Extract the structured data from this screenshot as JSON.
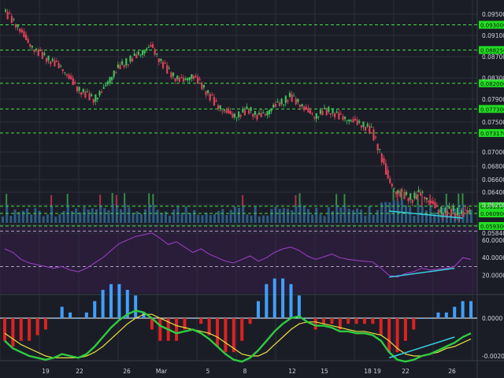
{
  "colors": {
    "background": "#1b1d26",
    "grid": "#2b2f3b",
    "up": "#3fbf5a",
    "down": "#e0405a",
    "level_line": "#44e044",
    "level_tag": "#22dd22",
    "trendline": "#36d0e0",
    "rsi_line": "#a040c8",
    "rsi_band": "#2a1d3a",
    "macd_fast": "#2ecc40",
    "macd_slow": "#e8e040",
    "hist_pos": "#3fa0ff",
    "hist_neg": "#dd2222",
    "volume": "#3a8fd0"
  },
  "chart_data": [
    {
      "type": "candlestick",
      "panel": "price",
      "y_ticks": [
        "0.095000",
        "0.091000",
        "0.087000",
        "0.083000",
        "0.079000",
        "0.075000",
        "0.070000",
        "0.068000",
        "0.066000",
        "0.064000",
        "0.062000",
        "0.058400"
      ],
      "y_tick_values": [
        0.095,
        0.091,
        0.087,
        0.083,
        0.079,
        0.075,
        0.07,
        0.068,
        0.066,
        0.064,
        0.062,
        0.0584
      ],
      "levels": [
        {
          "label": "0.093000",
          "value": 0.093
        },
        {
          "label": "0.088250",
          "value": 0.08825
        },
        {
          "label": "0.082000",
          "value": 0.082
        },
        {
          "label": "0.077300",
          "value": 0.0773
        },
        {
          "label": "0.073170",
          "value": 0.07317
        },
        {
          "label": "0.061810",
          "value": 0.06181
        },
        {
          "label": "0.060900",
          "value": 0.0609
        },
        {
          "label": "0.059300",
          "value": 0.0593
        }
      ],
      "close_path": [
        0.0955,
        0.094,
        0.092,
        0.0895,
        0.088,
        0.087,
        0.086,
        0.085,
        0.083,
        0.081,
        0.08,
        0.079,
        0.0805,
        0.083,
        0.085,
        0.086,
        0.087,
        0.088,
        0.089,
        0.0865,
        0.0845,
        0.083,
        0.0825,
        0.0835,
        0.082,
        0.08,
        0.078,
        0.077,
        0.076,
        0.0765,
        0.0772,
        0.076,
        0.0765,
        0.0778,
        0.0785,
        0.0795,
        0.0785,
        0.077,
        0.076,
        0.0768,
        0.077,
        0.076,
        0.0755,
        0.075,
        0.0745,
        0.0735,
        0.07,
        0.066,
        0.064,
        0.0635,
        0.063,
        0.064,
        0.0625,
        0.0615,
        0.061,
        0.0612,
        0.0608,
        0.0612
      ]
    },
    {
      "type": "line",
      "panel": "rsi",
      "y_ticks": [
        "60.0000",
        "40.0000",
        "20.0000"
      ],
      "y_tick_values": [
        60,
        40,
        20
      ],
      "overbought": 70,
      "oversold": 30,
      "values": [
        50,
        46,
        38,
        34,
        32,
        30,
        28,
        30,
        26,
        24,
        28,
        34,
        40,
        48,
        56,
        60,
        64,
        66,
        68,
        62,
        55,
        58,
        52,
        46,
        50,
        44,
        40,
        36,
        34,
        38,
        42,
        36,
        40,
        46,
        50,
        52,
        48,
        42,
        38,
        41,
        44,
        40,
        38,
        37,
        36,
        35,
        28,
        20,
        18,
        22,
        24,
        28,
        26,
        27,
        28,
        30,
        40,
        38
      ],
      "trend_start": [
        47,
        18
      ],
      "trend_end": [
        55,
        28
      ]
    },
    {
      "type": "line",
      "panel": "macd",
      "y_ticks": [
        "0.0000",
        "-0.0020"
      ],
      "y_tick_values": [
        0,
        -0.002
      ],
      "fast": [
        -0.0012,
        -0.0016,
        -0.0018,
        -0.002,
        -0.0021,
        -0.0022,
        -0.0021,
        -0.0019,
        -0.002,
        -0.0021,
        -0.0019,
        -0.0015,
        -0.001,
        -0.0005,
        -0.0001,
        0.0002,
        0.0004,
        0.0003,
        0.0,
        -0.0004,
        -0.0006,
        -0.0008,
        -0.0007,
        -0.0006,
        -0.0008,
        -0.0011,
        -0.0015,
        -0.0019,
        -0.0022,
        -0.0023,
        -0.0021,
        -0.0017,
        -0.0012,
        -0.0007,
        -0.0003,
        0.0,
        0.0001,
        -0.0002,
        -0.0004,
        -0.0004,
        -0.0005,
        -0.0007,
        -0.0007,
        -0.0008,
        -0.0008,
        -0.0009,
        -0.0012,
        -0.0018,
        -0.0022,
        -0.0023,
        -0.0022,
        -0.002,
        -0.0019,
        -0.0017,
        -0.0015,
        -0.0013,
        -0.001,
        -0.0008
      ],
      "slow": [
        -0.0008,
        -0.0011,
        -0.0014,
        -0.0016,
        -0.0018,
        -0.002,
        -0.0021,
        -0.0021,
        -0.0021,
        -0.0021,
        -0.002,
        -0.0018,
        -0.0015,
        -0.0011,
        -0.0007,
        -0.0003,
        0.0,
        0.0002,
        0.0002,
        0.0,
        -0.0002,
        -0.0004,
        -0.0005,
        -0.0006,
        -0.0007,
        -0.0008,
        -0.001,
        -0.0013,
        -0.0016,
        -0.0019,
        -0.002,
        -0.002,
        -0.0018,
        -0.0014,
        -0.001,
        -0.0006,
        -0.0003,
        -0.0002,
        -0.0002,
        -0.0003,
        -0.0004,
        -0.0005,
        -0.0006,
        -0.0007,
        -0.0007,
        -0.0008,
        -0.0009,
        -0.0012,
        -0.0016,
        -0.0019,
        -0.002,
        -0.002,
        -0.0019,
        -0.0018,
        -0.0016,
        -0.0015,
        -0.0013,
        -0.0011
      ],
      "trend_start": [
        47,
        -0.0021
      ],
      "trend_end": [
        55,
        -0.001
      ]
    }
  ],
  "x_ticks": [
    "19",
    "22",
    "26",
    "Mar",
    "5",
    "8",
    "12",
    "15",
    "18",
    "19",
    "22",
    "26"
  ]
}
